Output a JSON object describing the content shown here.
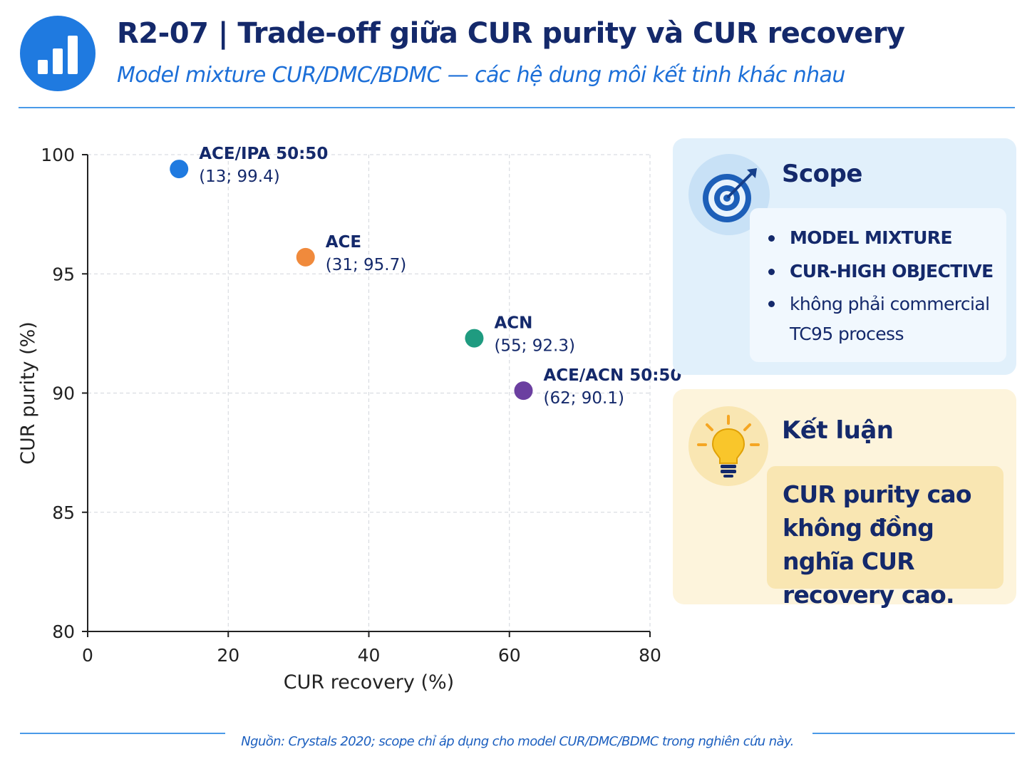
{
  "header": {
    "title": "R2-07 | Trade-off giữa CUR purity và CUR recovery",
    "subtitle": "Model mixture CUR/DMC/BDMC — các hệ dung môi kết tinh khác nhau",
    "logo_icon": "bar-chart-icon"
  },
  "chart_data": {
    "type": "scatter",
    "xlabel": "CUR recovery (%)",
    "ylabel": "CUR purity (%)",
    "xlim": [
      0,
      80
    ],
    "ylim": [
      80,
      100
    ],
    "xticks": [
      0,
      20,
      40,
      60,
      80
    ],
    "yticks": [
      80,
      85,
      90,
      95,
      100
    ],
    "grid": true,
    "points": [
      {
        "name": "ACE/IPA 50:50",
        "label": "(13; 99.4)",
        "x": 13,
        "y": 99.4,
        "color": "#1f7ae0"
      },
      {
        "name": "ACE",
        "label": "(31; 95.7)",
        "x": 31,
        "y": 95.7,
        "color": "#f08a3c"
      },
      {
        "name": "ACN",
        "label": "(55; 92.3)",
        "x": 55,
        "y": 92.3,
        "color": "#1f9b80"
      },
      {
        "name": "ACE/ACN 50:50",
        "label": "(62; 90.1)",
        "x": 62,
        "y": 90.1,
        "color": "#6b3fa0"
      }
    ]
  },
  "scope": {
    "icon": "target-icon",
    "title": "Scope",
    "items": [
      "MODEL MIXTURE",
      "CUR-HIGH OBJECTIVE",
      "không phải commercial TC95 process"
    ]
  },
  "conclusion": {
    "icon": "lightbulb-icon",
    "title": "Kết luận",
    "text": "CUR purity cao không đồng nghĩa CUR recovery cao."
  },
  "footer": {
    "note": "Nguồn: Crystals 2020; scope chỉ áp dụng cho model CUR/DMC/BDMC trong nghiên cứu này."
  }
}
